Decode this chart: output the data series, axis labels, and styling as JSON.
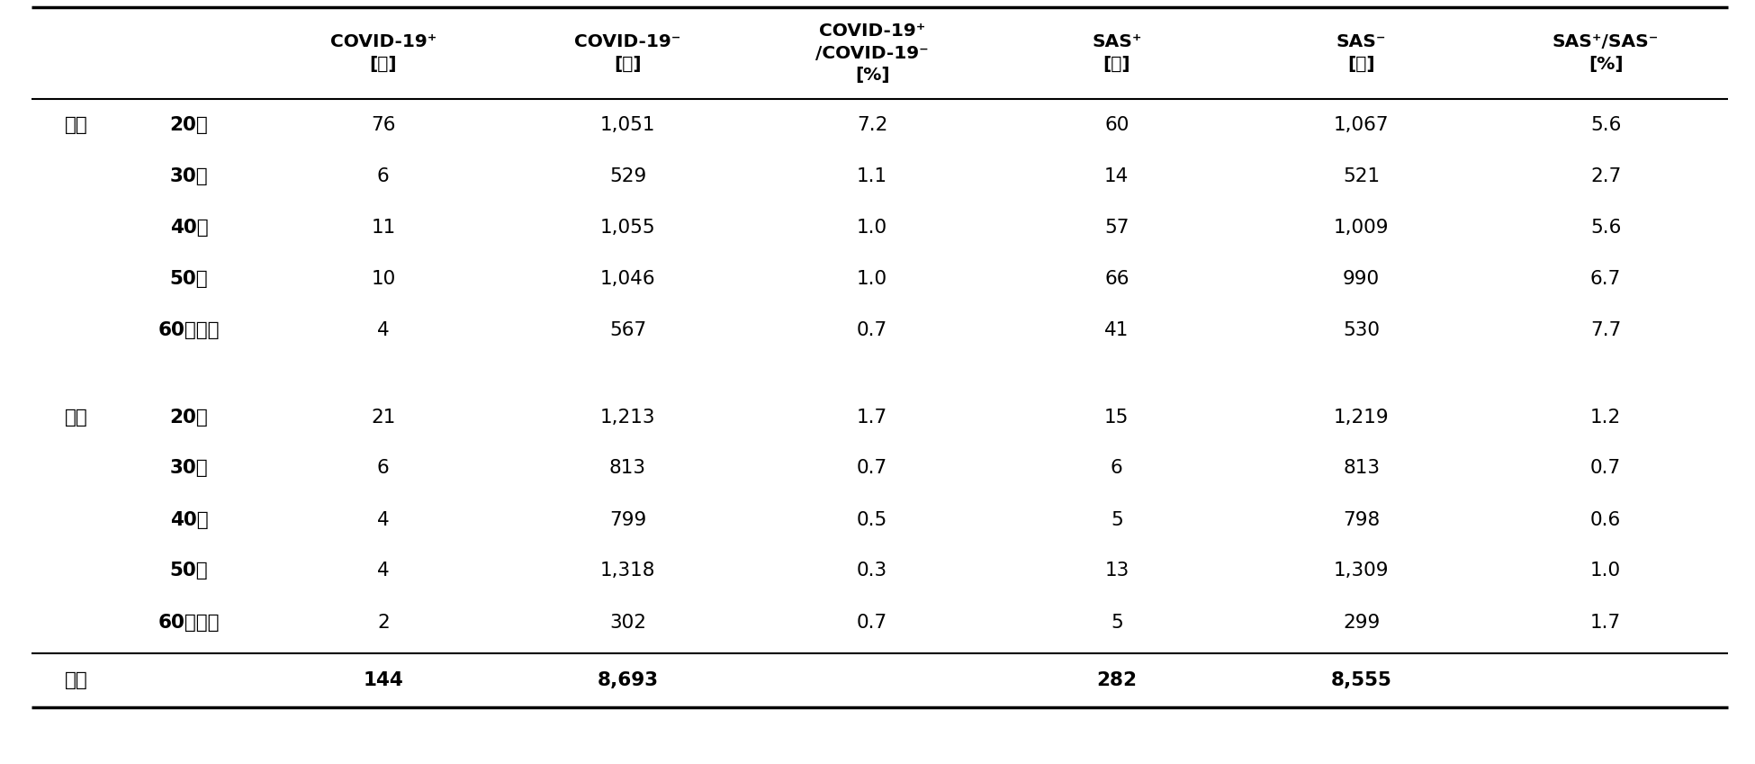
{
  "col_headers_line1": [
    "COVID-19⁺",
    "COVID-19⁻",
    "COVID-19⁺",
    "SAS⁺",
    "SAS⁻",
    "SAS⁺/SAS⁻"
  ],
  "col_headers_line2": [
    "[人]",
    "[人]",
    "/COVID-19⁻",
    "[人]",
    "[人]",
    "[%]"
  ],
  "col_headers_line3": [
    "",
    "",
    "[%]",
    "",
    "",
    ""
  ],
  "rows": [
    {
      "gender": "男性",
      "age": "20代",
      "covid_pos": "76",
      "covid_neg": "1,051",
      "covid_ratio": "7.2",
      "sas_pos": "60",
      "sas_neg": "1,067",
      "sas_ratio": "5.6"
    },
    {
      "gender": "",
      "age": "30代",
      "covid_pos": "6",
      "covid_neg": "529",
      "covid_ratio": "1.1",
      "sas_pos": "14",
      "sas_neg": "521",
      "sas_ratio": "2.7"
    },
    {
      "gender": "",
      "age": "40代",
      "covid_pos": "11",
      "covid_neg": "1,055",
      "covid_ratio": "1.0",
      "sas_pos": "57",
      "sas_neg": "1,009",
      "sas_ratio": "5.6"
    },
    {
      "gender": "",
      "age": "50代",
      "covid_pos": "10",
      "covid_neg": "1,046",
      "covid_ratio": "1.0",
      "sas_pos": "66",
      "sas_neg": "990",
      "sas_ratio": "6.7"
    },
    {
      "gender": "",
      "age": "60代以上",
      "covid_pos": "4",
      "covid_neg": "567",
      "covid_ratio": "0.7",
      "sas_pos": "41",
      "sas_neg": "530",
      "sas_ratio": "7.7"
    },
    {
      "gender": "女性",
      "age": "20代",
      "covid_pos": "21",
      "covid_neg": "1,213",
      "covid_ratio": "1.7",
      "sas_pos": "15",
      "sas_neg": "1,219",
      "sas_ratio": "1.2"
    },
    {
      "gender": "",
      "age": "30代",
      "covid_pos": "6",
      "covid_neg": "813",
      "covid_ratio": "0.7",
      "sas_pos": "6",
      "sas_neg": "813",
      "sas_ratio": "0.7"
    },
    {
      "gender": "",
      "age": "40代",
      "covid_pos": "4",
      "covid_neg": "799",
      "covid_ratio": "0.5",
      "sas_pos": "5",
      "sas_neg": "798",
      "sas_ratio": "0.6"
    },
    {
      "gender": "",
      "age": "50代",
      "covid_pos": "4",
      "covid_neg": "1,318",
      "covid_ratio": "0.3",
      "sas_pos": "13",
      "sas_neg": "1,309",
      "sas_ratio": "1.0"
    },
    {
      "gender": "",
      "age": "60代以上",
      "covid_pos": "2",
      "covid_neg": "302",
      "covid_ratio": "0.7",
      "sas_pos": "5",
      "sas_neg": "299",
      "sas_ratio": "1.7"
    }
  ],
  "total": {
    "label": "全体",
    "covid_pos": "144",
    "covid_neg": "8,693",
    "sas_pos": "282",
    "sas_neg": "8,555"
  },
  "bg_color": "#ffffff",
  "text_color": "#000000",
  "line_color": "#000000"
}
